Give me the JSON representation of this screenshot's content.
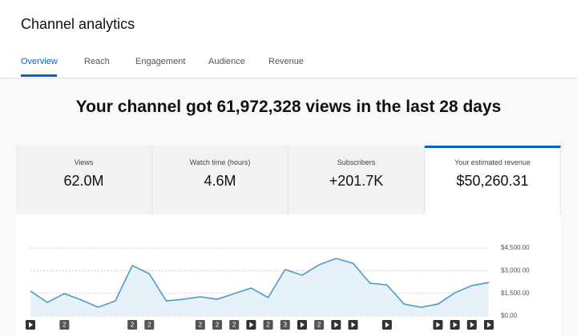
{
  "header": {
    "title": "Channel analytics",
    "tabs": [
      "Overview",
      "Reach",
      "Engagement",
      "Audience",
      "Revenue"
    ]
  },
  "headline": "Your channel got 61,972,328 views in the last 28 days",
  "metrics": [
    {
      "label": "Views",
      "value": "62.0M"
    },
    {
      "label": "Watch time (hours)",
      "value": "4.6M"
    },
    {
      "label": "Subscribers",
      "value": "+201.7K"
    },
    {
      "label": "Your estimated revenue",
      "value": "$50,260.31"
    }
  ],
  "chart_data": {
    "type": "line",
    "color": "#4a9cc7",
    "values": [
      1650,
      900,
      1480,
      1060,
      580,
      1000,
      3340,
      2800,
      1000,
      1110,
      1270,
      1110,
      1480,
      1850,
      1220,
      3070,
      2700,
      3390,
      3810,
      3490,
      2170,
      2060,
      790,
      580,
      790,
      1540,
      2010,
      2220
    ],
    "ylim": [
      0,
      4500
    ],
    "yticks": [
      {
        "value": 0,
        "label": "$0.00"
      },
      {
        "value": 1500,
        "label": "$1,500.00"
      },
      {
        "value": 3000,
        "label": "$3,000.00"
      },
      {
        "value": 4500,
        "label": "$4,500.00"
      }
    ],
    "grid": true,
    "video_days": [
      0,
      13,
      16,
      18,
      19,
      21,
      24,
      25,
      26,
      27
    ],
    "group_markers": {
      "days": [
        2,
        6,
        7,
        10,
        11,
        12,
        14,
        15,
        17
      ],
      "counts": [
        "2",
        "2",
        "2",
        "2",
        "2",
        "2",
        "2",
        "3",
        "2"
      ]
    }
  }
}
